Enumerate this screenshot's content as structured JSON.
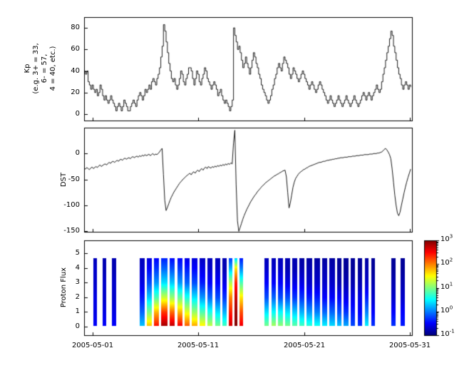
{
  "figure": {
    "background": "#ffffff",
    "line_color": "#000000",
    "xlim": [
      -0.8,
      30.2
    ],
    "x_ticks": {
      "days": [
        0,
        10,
        20,
        30
      ],
      "labels": [
        "2005-05-01",
        "2005-05-11",
        "2005-05-21",
        "2005-05-31"
      ]
    }
  },
  "chart_data": [
    {
      "type": "line",
      "name": "kp",
      "ylabel_lines": [
        "Kp",
        "(e.g. 3+ = 33,",
        "6- = 57,",
        "4 = 40, etc.)"
      ],
      "ylim": [
        -6,
        90
      ],
      "yticks": [
        0,
        20,
        40,
        60,
        80
      ],
      "step": true,
      "start_day": -0.8,
      "dt_days": 0.125,
      "values": [
        40,
        37,
        40,
        30,
        27,
        23,
        27,
        23,
        20,
        23,
        17,
        20,
        27,
        23,
        17,
        13,
        17,
        13,
        10,
        13,
        17,
        13,
        10,
        7,
        3,
        7,
        10,
        7,
        3,
        7,
        13,
        10,
        7,
        3,
        3,
        7,
        10,
        13,
        10,
        7,
        13,
        17,
        20,
        17,
        13,
        17,
        23,
        20,
        23,
        27,
        23,
        30,
        33,
        30,
        27,
        33,
        37,
        43,
        53,
        63,
        83,
        77,
        67,
        57,
        47,
        40,
        33,
        30,
        33,
        27,
        23,
        27,
        33,
        40,
        37,
        30,
        27,
        33,
        37,
        43,
        43,
        40,
        33,
        27,
        33,
        40,
        37,
        30,
        27,
        33,
        37,
        43,
        40,
        33,
        30,
        27,
        23,
        27,
        30,
        27,
        23,
        17,
        20,
        23,
        17,
        13,
        10,
        13,
        10,
        7,
        3,
        7,
        13,
        80,
        73,
        67,
        60,
        63,
        57,
        50,
        43,
        47,
        53,
        47,
        43,
        37,
        43,
        50,
        57,
        53,
        47,
        43,
        37,
        33,
        27,
        23,
        20,
        17,
        13,
        10,
        13,
        17,
        23,
        27,
        33,
        37,
        43,
        47,
        43,
        40,
        47,
        53,
        50,
        47,
        43,
        37,
        33,
        37,
        43,
        40,
        37,
        33,
        30,
        33,
        37,
        40,
        37,
        33,
        30,
        27,
        23,
        27,
        30,
        27,
        23,
        20,
        23,
        27,
        30,
        27,
        23,
        20,
        17,
        13,
        10,
        13,
        17,
        13,
        10,
        7,
        10,
        13,
        17,
        13,
        10,
        7,
        10,
        13,
        17,
        13,
        10,
        7,
        10,
        13,
        17,
        13,
        10,
        7,
        10,
        13,
        17,
        20,
        17,
        13,
        17,
        20,
        17,
        13,
        17,
        20,
        23,
        27,
        23,
        20,
        23,
        30,
        37,
        43,
        50,
        57,
        63,
        70,
        77,
        73,
        63,
        57,
        50,
        43,
        37,
        33,
        27,
        23,
        27,
        30,
        27,
        23,
        27,
        25
      ]
    },
    {
      "type": "line",
      "name": "dst",
      "ylabel": "DST",
      "ylim": [
        -151,
        50
      ],
      "yticks": [
        0,
        -50,
        -100,
        -150
      ],
      "step": false,
      "start_day": -0.8,
      "dt_days": 0.125,
      "values": [
        -28,
        -30,
        -27,
        -29,
        -31,
        -28,
        -26,
        -29,
        -27,
        -25,
        -27,
        -24,
        -22,
        -25,
        -23,
        -21,
        -20,
        -22,
        -19,
        -17,
        -19,
        -16,
        -15,
        -17,
        -15,
        -13,
        -15,
        -12,
        -11,
        -13,
        -10,
        -9,
        -11,
        -9,
        -8,
        -10,
        -7,
        -6,
        -8,
        -6,
        -5,
        -7,
        -4,
        -6,
        -3,
        -5,
        -2,
        -4,
        -3,
        -1,
        -4,
        -2,
        0,
        -3,
        -1,
        -2,
        0,
        3,
        7,
        10,
        -40,
        -90,
        -110,
        -104,
        -97,
        -90,
        -84,
        -79,
        -74,
        -70,
        -66,
        -62,
        -58,
        -55,
        -52,
        -49,
        -47,
        -44,
        -42,
        -40,
        -38,
        -41,
        -37,
        -35,
        -38,
        -34,
        -32,
        -35,
        -31,
        -29,
        -32,
        -28,
        -26,
        -29,
        -25,
        -27,
        -28,
        -25,
        -27,
        -24,
        -26,
        -23,
        -25,
        -22,
        -24,
        -21,
        -23,
        -20,
        -22,
        -19,
        -21,
        -18,
        -20,
        20,
        45,
        -60,
        -130,
        -150,
        -143,
        -135,
        -127,
        -120,
        -114,
        -108,
        -103,
        -98,
        -93,
        -89,
        -85,
        -81,
        -78,
        -74,
        -71,
        -68,
        -65,
        -62,
        -60,
        -57,
        -55,
        -53,
        -51,
        -49,
        -47,
        -45,
        -43,
        -42,
        -40,
        -39,
        -37,
        -36,
        -34,
        -33,
        -32,
        -45,
        -75,
        -105,
        -95,
        -80,
        -65,
        -55,
        -48,
        -44,
        -40,
        -37,
        -35,
        -33,
        -31,
        -30,
        -28,
        -27,
        -25,
        -24,
        -23,
        -22,
        -21,
        -20,
        -19,
        -18,
        -17,
        -17,
        -16,
        -15,
        -15,
        -14,
        -13,
        -13,
        -12,
        -12,
        -11,
        -11,
        -10,
        -10,
        -9,
        -9,
        -8,
        -8,
        -8,
        -7,
        -7,
        -7,
        -6,
        -6,
        -6,
        -5,
        -5,
        -5,
        -4,
        -4,
        -4,
        -3,
        -3,
        -3,
        -2,
        -2,
        -2,
        -2,
        -1,
        -1,
        -1,
        0,
        0,
        0,
        1,
        1,
        2,
        3,
        5,
        8,
        10,
        7,
        3,
        -2,
        -10,
        -30,
        -55,
        -80,
        -100,
        -115,
        -120,
        -113,
        -100,
        -88,
        -76,
        -65,
        -55,
        -46,
        -38,
        -30
      ]
    },
    {
      "type": "heatmap",
      "name": "proton_flux",
      "ylabel": "Proton Flux",
      "ylim": [
        -0.6,
        5.9
      ],
      "yticks": [
        0,
        1,
        2,
        3,
        4,
        5
      ],
      "y_extent": [
        0.05,
        4.7
      ],
      "colorbar": {
        "base": "10",
        "tick_exponents": [
          3,
          2,
          1,
          0,
          -1
        ],
        "log_range": [
          -1,
          3
        ],
        "colormap": "jet"
      },
      "columns": [
        {
          "day": 0.05,
          "w": 0.35,
          "profile": [
            -0.5,
            -0.6,
            -0.6,
            -0.7,
            -0.7,
            -0.8
          ]
        },
        {
          "day": 0.95,
          "w": 0.35,
          "profile": [
            -0.5,
            -0.6,
            -0.7,
            -0.7,
            -0.8,
            -0.8
          ]
        },
        {
          "day": 1.85,
          "w": 0.35,
          "profile": [
            -0.5,
            -0.6,
            -0.7,
            -0.7,
            -0.8,
            -0.8
          ]
        },
        {
          "day": 4.45,
          "w": 0.45,
          "profile": [
            0.3,
            -0.1,
            -0.4,
            -0.6,
            -0.7,
            -0.8
          ]
        },
        {
          "day": 5.1,
          "w": 0.5,
          "profile": [
            1.8,
            1.0,
            0.3,
            -0.2,
            -0.5,
            -0.7
          ]
        },
        {
          "day": 5.8,
          "w": 0.5,
          "profile": [
            2.5,
            1.8,
            0.8,
            0.1,
            -0.3,
            -0.6
          ]
        },
        {
          "day": 6.5,
          "w": 0.6,
          "profile": [
            2.9,
            2.3,
            1.3,
            0.4,
            -0.1,
            -0.5
          ]
        },
        {
          "day": 7.3,
          "w": 0.45,
          "profile": [
            2.8,
            2.1,
            1.1,
            0.3,
            -0.2,
            -0.6
          ]
        },
        {
          "day": 8.0,
          "w": 0.5,
          "profile": [
            2.6,
            1.8,
            0.9,
            0.1,
            -0.3,
            -0.6
          ]
        },
        {
          "day": 8.7,
          "w": 0.5,
          "profile": [
            2.2,
            1.4,
            0.6,
            -0.1,
            -0.4,
            -0.7
          ]
        },
        {
          "day": 9.4,
          "w": 0.5,
          "profile": [
            1.9,
            1.1,
            0.4,
            -0.2,
            -0.5,
            -0.7
          ]
        },
        {
          "day": 10.1,
          "w": 0.55,
          "profile": [
            1.6,
            0.8,
            0.1,
            -0.4,
            -0.6,
            -0.8
          ]
        },
        {
          "day": 10.85,
          "w": 0.5,
          "profile": [
            1.3,
            0.6,
            -0.1,
            -0.5,
            -0.7,
            -0.8
          ]
        },
        {
          "day": 11.6,
          "w": 0.5,
          "profile": [
            1.0,
            0.4,
            -0.2,
            -0.5,
            -0.7,
            -0.8
          ]
        },
        {
          "day": 12.3,
          "w": 0.4,
          "profile": [
            0.8,
            0.2,
            -0.3,
            -0.6,
            -0.8,
            -0.8
          ]
        },
        {
          "day": 12.9,
          "w": 0.3,
          "profile": [
            2.7,
            2.4,
            2.0,
            1.2,
            0.2,
            -0.5
          ]
        },
        {
          "day": 13.4,
          "w": 0.3,
          "profile": [
            3.0,
            2.9,
            2.7,
            2.4,
            1.6,
            -0.3
          ]
        },
        {
          "day": 13.9,
          "w": 0.3,
          "profile": [
            2.6,
            2.2,
            1.6,
            0.8,
            0.0,
            -0.6
          ]
        },
        {
          "day": 16.25,
          "w": 0.4,
          "profile": [
            1.0,
            0.4,
            -0.2,
            -0.5,
            -0.7,
            -0.8
          ]
        },
        {
          "day": 16.9,
          "w": 0.45,
          "profile": [
            1.2,
            0.5,
            -0.1,
            -0.5,
            -0.7,
            -0.8
          ]
        },
        {
          "day": 17.55,
          "w": 0.45,
          "profile": [
            1.1,
            0.5,
            -0.2,
            -0.5,
            -0.7,
            -0.8
          ]
        },
        {
          "day": 18.2,
          "w": 0.5,
          "profile": [
            1.0,
            0.4,
            -0.2,
            -0.6,
            -0.8,
            -0.8
          ]
        },
        {
          "day": 18.9,
          "w": 0.45,
          "profile": [
            0.9,
            0.3,
            -0.3,
            -0.6,
            -0.8,
            -0.8
          ]
        },
        {
          "day": 19.55,
          "w": 0.45,
          "profile": [
            0.8,
            0.2,
            -0.3,
            -0.6,
            -0.8,
            -0.9
          ]
        },
        {
          "day": 20.2,
          "w": 0.55,
          "profile": [
            0.7,
            0.1,
            -0.4,
            -0.7,
            -0.8,
            -0.9
          ]
        },
        {
          "day": 21.0,
          "w": 0.5,
          "profile": [
            0.6,
            0.0,
            -0.4,
            -0.7,
            -0.8,
            -0.9
          ]
        },
        {
          "day": 21.7,
          "w": 0.5,
          "profile": [
            0.5,
            -0.1,
            -0.5,
            -0.7,
            -0.8,
            -0.9
          ]
        },
        {
          "day": 22.4,
          "w": 0.5,
          "profile": [
            0.4,
            -0.1,
            -0.5,
            -0.7,
            -0.8,
            -0.9
          ]
        },
        {
          "day": 23.1,
          "w": 0.45,
          "profile": [
            0.3,
            -0.2,
            -0.5,
            -0.8,
            -0.9,
            -0.9
          ]
        },
        {
          "day": 23.75,
          "w": 0.45,
          "profile": [
            0.2,
            -0.3,
            -0.6,
            -0.8,
            -0.9,
            -0.9
          ]
        },
        {
          "day": 24.4,
          "w": 0.4,
          "profile": [
            -0.2,
            -0.4,
            -0.6,
            -0.8,
            -0.9,
            -0.9
          ]
        },
        {
          "day": 25.1,
          "w": 0.4,
          "profile": [
            -0.3,
            -0.5,
            -0.6,
            -0.8,
            -0.9,
            -0.9
          ]
        },
        {
          "day": 25.75,
          "w": 0.35,
          "profile": [
            0.5,
            0.0,
            -0.4,
            -0.7,
            -0.8,
            -0.9
          ]
        },
        {
          "day": 26.35,
          "w": 0.35,
          "profile": [
            -0.3,
            -0.5,
            -0.7,
            -0.8,
            -0.9,
            -0.9
          ]
        },
        {
          "day": 28.25,
          "w": 0.4,
          "profile": [
            -0.3,
            -0.5,
            -0.7,
            -0.8,
            -0.9,
            -0.9
          ]
        },
        {
          "day": 29.1,
          "w": 0.4,
          "profile": [
            -0.4,
            -0.5,
            -0.7,
            -0.8,
            -0.9,
            -0.9
          ]
        }
      ]
    }
  ]
}
